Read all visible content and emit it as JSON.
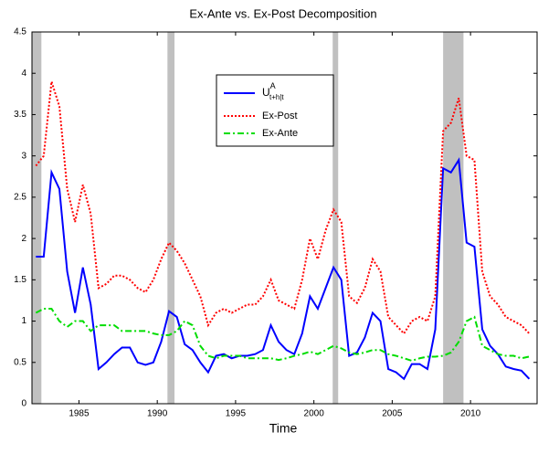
{
  "chart_data": {
    "type": "line",
    "title": "Ex-Ante vs. Ex-Post Decomposition",
    "x_label": "Time",
    "x": [
      1982.25,
      1982.75,
      1983.25,
      1983.75,
      1984.25,
      1984.75,
      1985.25,
      1985.75,
      1986.25,
      1986.75,
      1987.25,
      1987.75,
      1988.25,
      1988.75,
      1989.25,
      1989.75,
      1990.25,
      1990.75,
      1991.25,
      1991.75,
      1992.25,
      1992.75,
      1993.25,
      1993.75,
      1994.25,
      1994.75,
      1995.25,
      1995.75,
      1996.25,
      1996.75,
      1997.25,
      1997.75,
      1998.25,
      1998.75,
      1999.25,
      1999.75,
      2000.25,
      2000.75,
      2001.25,
      2001.75,
      2002.25,
      2002.75,
      2003.25,
      2003.75,
      2004.25,
      2004.75,
      2005.25,
      2005.75,
      2006.25,
      2006.75,
      2007.25,
      2007.75,
      2008.25,
      2008.75,
      2009.25,
      2009.75,
      2010.25,
      2010.75,
      2011.25,
      2011.75,
      2012.25,
      2012.75,
      2013.25,
      2013.75
    ],
    "series": [
      {
        "name": "U",
        "name_sup": "A",
        "name_sub": "t+h|t",
        "color": "#0000ff",
        "linestyle": "solid",
        "values": [
          1.78,
          1.78,
          2.8,
          2.6,
          1.6,
          1.1,
          1.65,
          1.2,
          0.42,
          0.5,
          0.6,
          0.68,
          0.68,
          0.5,
          0.47,
          0.5,
          0.75,
          1.12,
          1.05,
          0.72,
          0.65,
          0.5,
          0.38,
          0.58,
          0.6,
          0.55,
          0.58,
          0.58,
          0.6,
          0.65,
          0.95,
          0.75,
          0.65,
          0.6,
          0.85,
          1.3,
          1.15,
          1.4,
          1.65,
          1.5,
          0.58,
          0.62,
          0.8,
          1.1,
          1.0,
          0.42,
          0.38,
          0.3,
          0.48,
          0.48,
          0.42,
          0.9,
          2.85,
          2.8,
          2.95,
          1.95,
          1.9,
          0.9,
          0.7,
          0.6,
          0.45,
          0.42,
          0.4,
          0.3
        ]
      },
      {
        "name": "Ex-Post",
        "color": "#ff0000",
        "linestyle": "dotted",
        "values": [
          2.88,
          3.0,
          3.9,
          3.6,
          2.6,
          2.2,
          2.65,
          2.3,
          1.4,
          1.45,
          1.55,
          1.55,
          1.5,
          1.4,
          1.35,
          1.5,
          1.75,
          1.95,
          1.85,
          1.7,
          1.5,
          1.3,
          0.95,
          1.1,
          1.15,
          1.1,
          1.15,
          1.2,
          1.2,
          1.3,
          1.5,
          1.25,
          1.2,
          1.15,
          1.5,
          2.0,
          1.75,
          2.1,
          2.35,
          2.2,
          1.3,
          1.22,
          1.4,
          1.75,
          1.6,
          1.05,
          0.95,
          0.85,
          1.0,
          1.05,
          1.0,
          1.3,
          3.3,
          3.4,
          3.7,
          3.0,
          2.95,
          1.6,
          1.3,
          1.2,
          1.05,
          1.0,
          0.95,
          0.85
        ]
      },
      {
        "name": "Ex-Ante",
        "color": "#00dd00",
        "linestyle": "dashdot",
        "values": [
          1.1,
          1.15,
          1.15,
          1.0,
          0.93,
          1.0,
          1.0,
          0.88,
          0.95,
          0.95,
          0.95,
          0.88,
          0.88,
          0.88,
          0.88,
          0.85,
          0.83,
          0.83,
          0.88,
          1.0,
          0.95,
          0.7,
          0.58,
          0.55,
          0.58,
          0.58,
          0.58,
          0.55,
          0.55,
          0.55,
          0.55,
          0.53,
          0.55,
          0.58,
          0.6,
          0.63,
          0.6,
          0.65,
          0.7,
          0.67,
          0.62,
          0.6,
          0.62,
          0.65,
          0.65,
          0.6,
          0.58,
          0.55,
          0.52,
          0.55,
          0.57,
          0.57,
          0.58,
          0.62,
          0.75,
          1.0,
          1.05,
          0.7,
          0.65,
          0.6,
          0.58,
          0.58,
          0.55,
          0.57
        ]
      }
    ],
    "shaded_regions": [
      [
        1982.0,
        1982.6
      ],
      [
        1990.65,
        1991.1
      ],
      [
        2001.2,
        2001.55
      ],
      [
        2008.25,
        2009.55
      ]
    ],
    "shade_color": "#c0c0c0",
    "xlim": [
      1982.0,
      2014.25
    ],
    "ylim": [
      0,
      4.5
    ],
    "xticks": [
      1985,
      1990,
      1995,
      2000,
      2005,
      2010
    ],
    "yticks": [
      0,
      0.5,
      1,
      1.5,
      2,
      2.5,
      3,
      3.5,
      4,
      4.5
    ],
    "grid": false,
    "legend_position": "upper center"
  }
}
